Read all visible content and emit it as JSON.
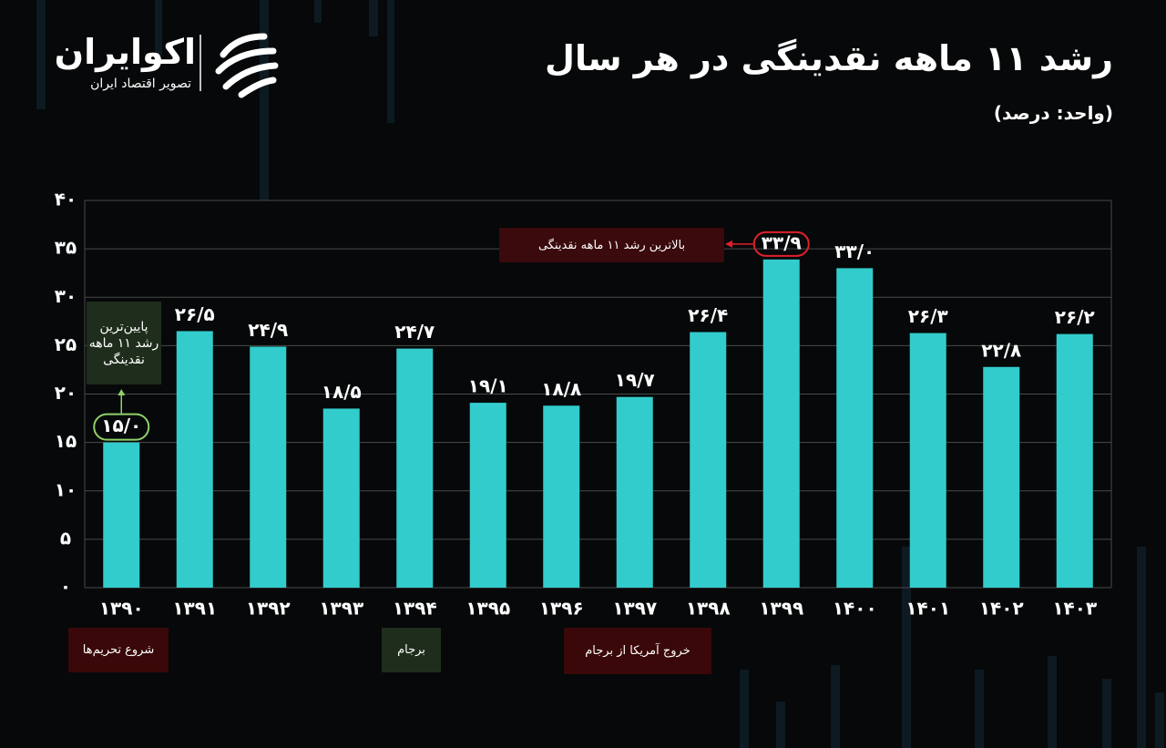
{
  "brand": {
    "name": "اکوایران",
    "tagline": "تصویر اقتصاد ایران"
  },
  "chart_data": {
    "type": "bar",
    "title": "رشد ۱۱ ماهه نقدینگی در هر سال",
    "subtitle": "(واحد: درصد)",
    "categories": [
      "۱۳۹۰",
      "۱۳۹۱",
      "۱۳۹۲",
      "۱۳۹۳",
      "۱۳۹۴",
      "۱۳۹۵",
      "۱۳۹۶",
      "۱۳۹۷",
      "۱۳۹۸",
      "۱۳۹۹",
      "۱۴۰۰",
      "۱۴۰۱",
      "۱۴۰۲",
      "۱۴۰۳"
    ],
    "values": [
      15.0,
      26.5,
      24.9,
      18.5,
      24.7,
      19.1,
      18.8,
      19.7,
      26.4,
      33.9,
      33.0,
      26.3,
      22.8,
      26.2
    ],
    "value_labels": [
      "۱۵/۰",
      "۲۶/۵",
      "۲۴/۹",
      "۱۸/۵",
      "۲۴/۷",
      "۱۹/۱",
      "۱۸/۸",
      "۱۹/۷",
      "۲۶/۴",
      "۳۳/۹",
      "۳۳/۰",
      "۲۶/۳",
      "۲۲/۸",
      "۲۶/۲"
    ],
    "color": "#33cccc",
    "ylim": [
      0,
      40
    ],
    "yticks": [
      {
        "value": 0,
        "label": "۰"
      },
      {
        "value": 5,
        "label": "۵"
      },
      {
        "value": 10,
        "label": "۱۰"
      },
      {
        "value": 15,
        "label": "۱۵"
      },
      {
        "value": 20,
        "label": "۲۰"
      },
      {
        "value": 25,
        "label": "۲۵"
      },
      {
        "value": 30,
        "label": "۳۰"
      },
      {
        "value": 35,
        "label": "۳۵"
      },
      {
        "value": 40,
        "label": "۴۰"
      }
    ],
    "grid": true,
    "annotations": [
      "بالاترین رشد ۱۱ ماهه نقدینگی",
      "پایین‌ترین رشد ۱۱ ماهه نقدینگی"
    ],
    "events": [
      "شروع تحریم‌ها",
      "برجام",
      "خروج آمریکا از برجام"
    ]
  }
}
